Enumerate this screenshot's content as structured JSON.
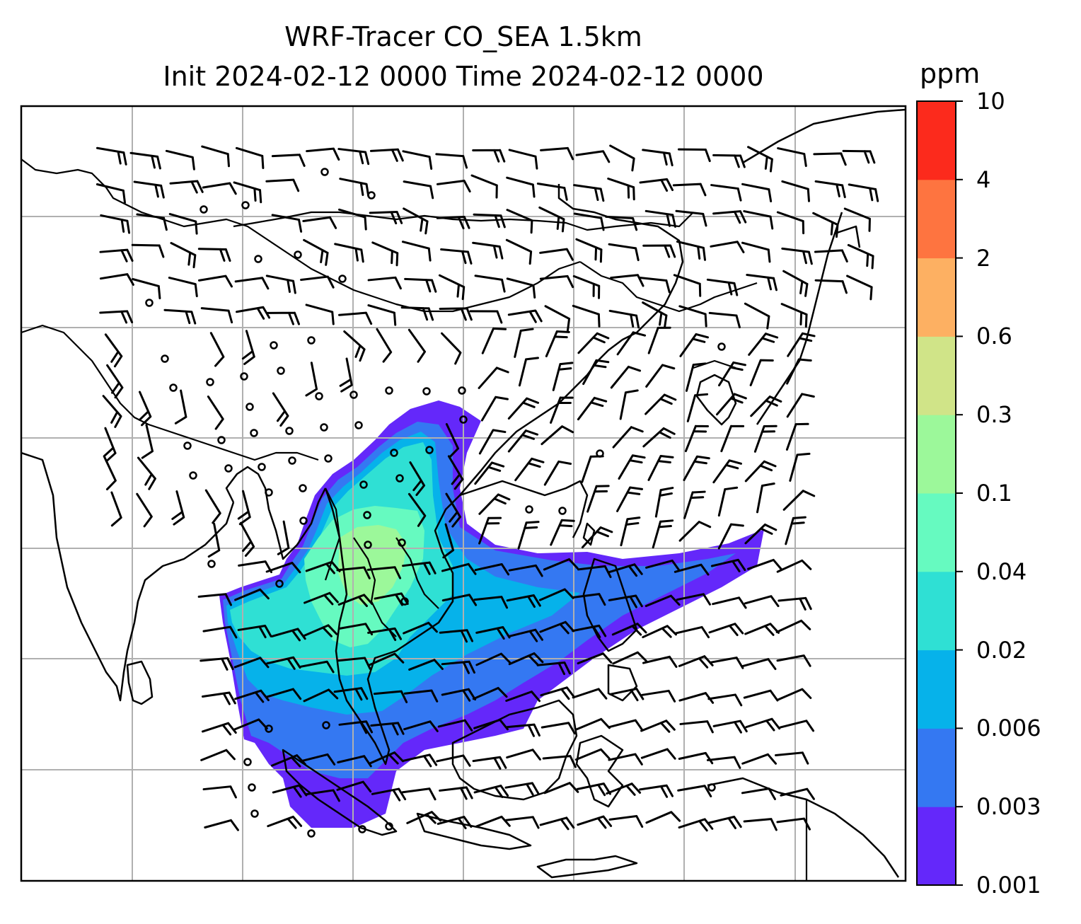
{
  "title": {
    "line1": "WRF-Tracer CO_SEA 1.5km",
    "line2": "Init 2024-02-12 0000 Time 2024-02-12 0000"
  },
  "colorbar": {
    "unit": "ppm",
    "levels": [
      "0.001",
      "0.003",
      "0.006",
      "0.02",
      "0.04",
      "0.1",
      "0.3",
      "0.6",
      "2",
      "4",
      "10"
    ],
    "colors": [
      "#6428fa",
      "#3478f2",
      "#06b2ea",
      "#2fe0d4",
      "#66fac0",
      "#9cf89a",
      "#d0e488",
      "#fdb062",
      "#fe7440",
      "#fc2a1c"
    ]
  },
  "map": {
    "grid": true,
    "layers": [
      "coastlines",
      "borders",
      "tracer-concentration",
      "wind-barbs",
      "calm-circles",
      "gridlines"
    ]
  }
}
